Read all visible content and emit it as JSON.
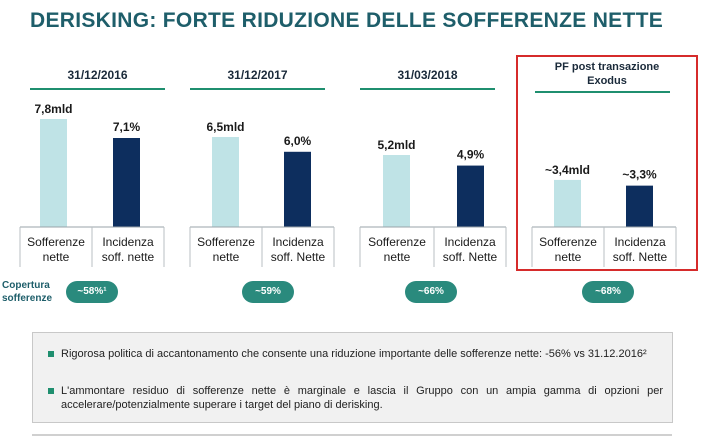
{
  "title": "DERISKING: FORTE RIDUZIONE DELLE SOFFERENZE NETTE",
  "colors": {
    "light_bar": "#bfe3e6",
    "dark_bar": "#0d2e5e",
    "accent": "#1f8f6f",
    "pill": "#2a8a7d",
    "highlight": "#d62b2b"
  },
  "chart_data": {
    "type": "bar",
    "title": "DERISKING: FORTE RIDUZIONE DELLE SOFFERENZE NETTE",
    "groups": [
      {
        "period": "31/12/2016",
        "sofferenze_mld": 7.8,
        "sofferenze_label": "7,8mld",
        "incidenza_pct": 7.1,
        "incidenza_label": "7,1%",
        "cat1": "Sofferenze nette",
        "cat2": "Incidenza soff. nette",
        "copertura": "~58%¹"
      },
      {
        "period": "31/12/2017",
        "sofferenze_mld": 6.5,
        "sofferenze_label": "6,5mld",
        "incidenza_pct": 6.0,
        "incidenza_label": "6,0%",
        "cat1": "Sofferenze nette",
        "cat2": "Incidenza soff. Nette",
        "copertura": "~59%"
      },
      {
        "period": "31/03/2018",
        "sofferenze_mld": 5.2,
        "sofferenze_label": "5,2mld",
        "incidenza_pct": 4.9,
        "incidenza_label": "4,9%",
        "cat1": "Sofferenze nette",
        "cat2": "Incidenza soff. Nette",
        "copertura": "~66%"
      },
      {
        "period": "PF post transazione Exodus",
        "sofferenze_mld": 3.4,
        "sofferenze_label": "~3,4mld",
        "incidenza_pct": 3.3,
        "incidenza_label": "~3,3%",
        "cat1": "Sofferenze nette",
        "cat2": "Incidenza soff. Nette",
        "copertura": "~68%"
      }
    ],
    "series": [
      {
        "name": "Sofferenze nette (mld)",
        "values": [
          7.8,
          6.5,
          5.2,
          3.4
        ]
      },
      {
        "name": "Incidenza soff. nette (%)",
        "values": [
          7.1,
          6.0,
          4.9,
          3.3
        ]
      }
    ],
    "ylim_sofferenze": [
      0,
      7.8
    ],
    "ylim_incidenza": [
      0,
      7.1
    ]
  },
  "copertura_label_1": "Copertura",
  "copertura_label_2": "sofferenze",
  "pf_label_line1": "PF post transazione",
  "pf_label_line2": "Exodus",
  "notes": [
    "Rigorosa politica di accantonamento che consente una riduzione importante delle sofferenze nette: -56% vs 31.12.2016²",
    "L'ammontare residuo di sofferenze nette è marginale e lascia il Gruppo con un ampia gamma di opzioni per accelerare/potenzialmente superare i target del piano di derisking."
  ]
}
